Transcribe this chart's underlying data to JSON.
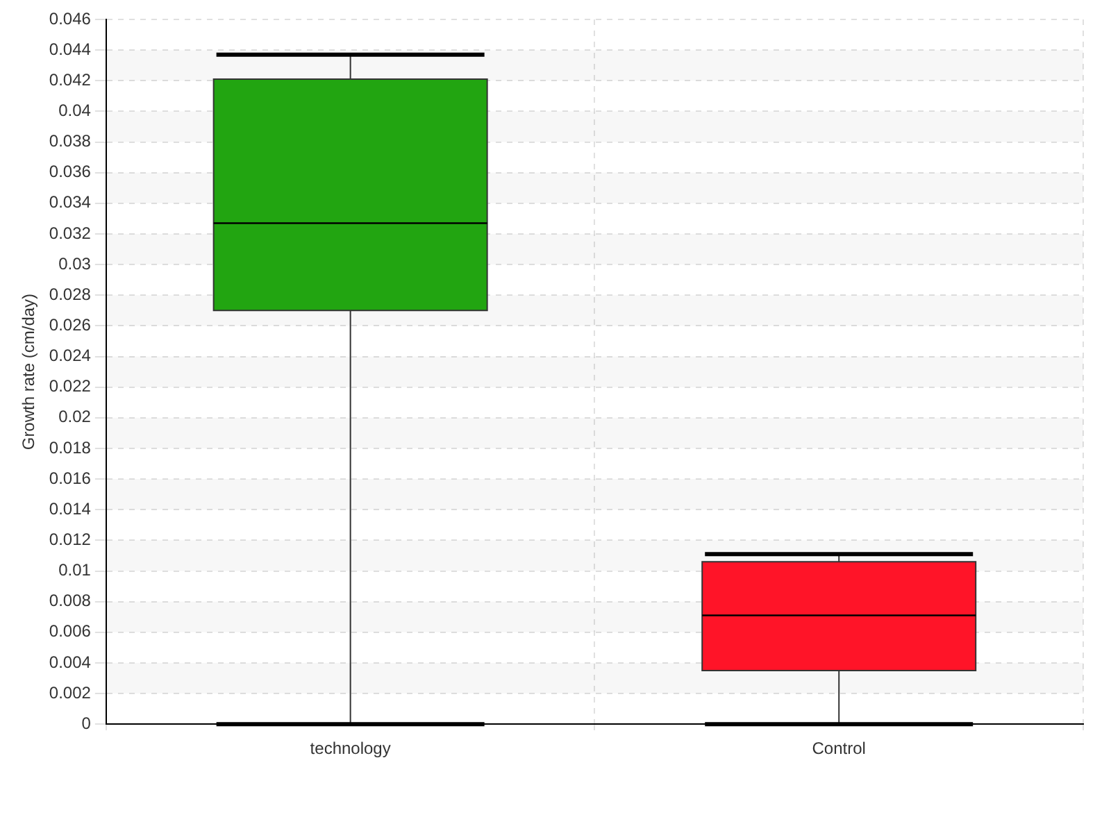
{
  "chart_data": {
    "type": "box",
    "ylabel": "Growth rate (cm/day)",
    "categories": [
      "technology",
      "Control"
    ],
    "colors": [
      "#22a511",
      "#ff1428"
    ],
    "boxes": [
      {
        "low": 0,
        "q1": 0.027,
        "median": 0.0327,
        "q3": 0.0421,
        "high": 0.0437
      },
      {
        "low": 0,
        "q1": 0.0035,
        "median": 0.0071,
        "q3": 0.0106,
        "high": 0.0111
      }
    ],
    "ylim": [
      0,
      0.046
    ],
    "yticks": [
      0,
      0.002,
      0.004,
      0.006,
      0.008,
      0.01,
      0.012,
      0.014,
      0.016,
      0.018,
      0.02,
      0.022,
      0.024,
      0.026,
      0.028,
      0.03,
      0.032,
      0.034,
      0.036,
      0.038,
      0.04,
      0.042,
      0.044,
      0.046
    ],
    "grid": true,
    "legend": false
  }
}
